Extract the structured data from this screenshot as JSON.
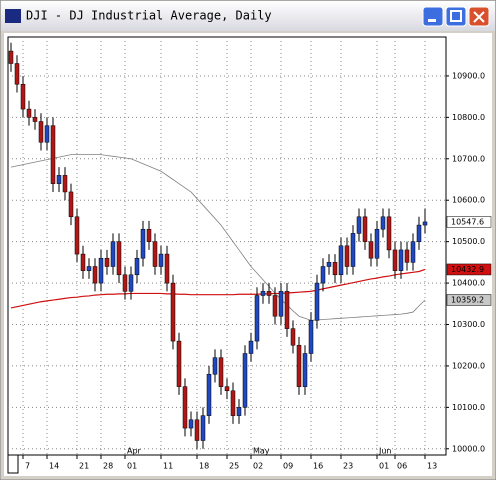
{
  "window": {
    "title": "DJI - DJ Industrial Average, Daily"
  },
  "chart_data": {
    "type": "candlestick",
    "categories": [
      null,
      null,
      "7",
      null,
      null,
      null,
      "14",
      null,
      null,
      null,
      null,
      "21",
      null,
      null,
      null,
      "28",
      null,
      null,
      null,
      "01",
      null,
      null,
      null,
      null,
      null,
      "11",
      null,
      null,
      null,
      null,
      null,
      "18",
      null,
      null,
      null,
      null,
      "25",
      null,
      null,
      null,
      "02",
      null,
      null,
      null,
      null,
      "09",
      null,
      null,
      null,
      null,
      "16",
      null,
      null,
      null,
      null,
      "23",
      null,
      null,
      null,
      null,
      null,
      "01",
      null,
      null,
      "06",
      null,
      null,
      null,
      null,
      "13"
    ],
    "month_categories": [
      null,
      null,
      null,
      null,
      null,
      null,
      null,
      null,
      null,
      null,
      null,
      null,
      null,
      null,
      null,
      null,
      null,
      null,
      null,
      "Apr",
      null,
      null,
      null,
      null,
      null,
      null,
      null,
      null,
      null,
      null,
      null,
      null,
      null,
      null,
      null,
      null,
      null,
      null,
      null,
      null,
      "May",
      null,
      null,
      null,
      null,
      null,
      null,
      null,
      null,
      null,
      null,
      null,
      null,
      null,
      null,
      null,
      null,
      null,
      null,
      null,
      null,
      "Jun",
      null,
      null,
      null,
      null,
      null,
      null,
      null,
      null
    ],
    "open": [
      10960,
      10930,
      10880,
      10820,
      10800,
      10790,
      10740,
      10780,
      10640,
      10660,
      10620,
      10560,
      10470,
      10430,
      10440,
      10400,
      10460,
      10440,
      10500,
      10420,
      10380,
      10420,
      10460,
      10530,
      10500,
      10440,
      10470,
      10400,
      10260,
      10150,
      10050,
      10070,
      10020,
      10080,
      10180,
      10220,
      10150,
      10140,
      10080,
      10100,
      10230,
      10260,
      10370,
      10380,
      10370,
      10320,
      10380,
      10290,
      10250,
      10150,
      10230,
      10310,
      10400,
      10440,
      10450,
      10420,
      10490,
      10440,
      10520,
      10560,
      10500,
      10460,
      10530,
      10560,
      10480,
      10430,
      10480,
      10450,
      10500,
      10540
    ],
    "high": [
      10980,
      10950,
      10900,
      10840,
      10820,
      10810,
      10800,
      10800,
      10680,
      10680,
      10640,
      10580,
      10490,
      10460,
      10460,
      10480,
      10480,
      10520,
      10520,
      10440,
      10440,
      10480,
      10550,
      10550,
      10520,
      10490,
      10490,
      10420,
      10280,
      10170,
      10090,
      10090,
      10100,
      10200,
      10240,
      10240,
      10170,
      10160,
      10120,
      10250,
      10280,
      10390,
      10400,
      10400,
      10390,
      10400,
      10400,
      10310,
      10270,
      10250,
      10330,
      10420,
      10460,
      10470,
      10470,
      10510,
      10510,
      10540,
      10580,
      10580,
      10520,
      10550,
      10580,
      10580,
      10500,
      10500,
      10500,
      10520,
      10560,
      10580
    ],
    "low": [
      10910,
      10860,
      10800,
      10780,
      10770,
      10720,
      10720,
      10620,
      10620,
      10600,
      10540,
      10450,
      10410,
      10410,
      10380,
      10380,
      10420,
      10420,
      10400,
      10360,
      10360,
      10400,
      10440,
      10480,
      10420,
      10420,
      10380,
      10240,
      10130,
      10030,
      10030,
      10000,
      10000,
      10060,
      10160,
      10130,
      10120,
      10060,
      10060,
      10080,
      10210,
      10240,
      10350,
      10350,
      10300,
      10300,
      10270,
      10230,
      10130,
      10130,
      10210,
      10290,
      10380,
      10420,
      10400,
      10400,
      10420,
      10420,
      10500,
      10480,
      10440,
      10440,
      10510,
      10460,
      10410,
      10410,
      10430,
      10430,
      10480,
      10520
    ],
    "close": [
      10930,
      10880,
      10820,
      10800,
      10790,
      10740,
      10780,
      10640,
      10660,
      10620,
      10560,
      10470,
      10430,
      10440,
      10400,
      10460,
      10440,
      10500,
      10420,
      10380,
      10420,
      10460,
      10530,
      10500,
      10440,
      10470,
      10400,
      10260,
      10150,
      10050,
      10070,
      10020,
      10080,
      10180,
      10220,
      10150,
      10140,
      10080,
      10100,
      10230,
      10260,
      10370,
      10380,
      10370,
      10320,
      10380,
      10290,
      10250,
      10150,
      10230,
      10310,
      10400,
      10440,
      10450,
      10420,
      10490,
      10440,
      10520,
      10560,
      10500,
      10460,
      10530,
      10560,
      10480,
      10430,
      10480,
      10450,
      10500,
      10540,
      10547.6
    ],
    "up_color": "#2048c0",
    "down_color": "#b01818",
    "overlays": [
      {
        "color": "#d01010",
        "values": [
          10340,
          10343,
          10346,
          10349,
          10352,
          10355,
          10357,
          10359,
          10361,
          10363,
          10365,
          10366,
          10368,
          10369,
          10371,
          10372,
          10373,
          10373,
          10374,
          10374,
          10375,
          10375,
          10375,
          10375,
          10375,
          10375,
          10374,
          10374,
          10373,
          10373,
          10372,
          10372,
          10372,
          10372,
          10372,
          10372,
          10372,
          10372,
          10373,
          10373,
          10373,
          10373,
          10374,
          10374,
          10375,
          10375,
          10376,
          10377,
          10378,
          10379,
          10380,
          10383,
          10386,
          10389,
          10392,
          10395,
          10398,
          10401,
          10404,
          10407,
          10410,
          10412,
          10415,
          10417,
          10420,
          10422,
          10424,
          10426,
          10428,
          10432.9
        ]
      },
      {
        "color": "#808080",
        "values": [
          10680,
          10683,
          10686,
          10689,
          10692,
          10695,
          10698,
          10701,
          10704,
          10707,
          10710,
          10710,
          10710,
          10710,
          10710,
          10710,
          10708,
          10706,
          10704,
          10702,
          10700,
          10694,
          10688,
          10682,
          10676,
          10670,
          10660,
          10650,
          10640,
          10630,
          10620,
          10604,
          10588,
          10572,
          10556,
          10540,
          10520,
          10500,
          10480,
          10460,
          10440,
          10424,
          10408,
          10392,
          10376,
          10360,
          10347,
          10333,
          10320,
          10315,
          10310,
          10311,
          10312,
          10313,
          10314,
          10315,
          10316,
          10317,
          10318,
          10319,
          10320,
          10321,
          10322,
          10323,
          10324,
          10325,
          10327,
          10330,
          10345,
          10359.2
        ]
      }
    ],
    "ylim": [
      9985,
      10994
    ],
    "yticks": [
      {
        "value": 10000,
        "label": "10000.0"
      },
      {
        "value": 10100,
        "label": "10100.0"
      },
      {
        "value": 10200,
        "label": "10200.0"
      },
      {
        "value": 10300,
        "label": "10300.0"
      },
      {
        "value": 10400,
        "label": "10400.0"
      },
      {
        "value": 10500,
        "label": "10500.0"
      },
      {
        "value": 10600,
        "label": "10600.0"
      },
      {
        "value": 10700,
        "label": "10700.0"
      },
      {
        "value": 10800,
        "label": "10800.0"
      },
      {
        "value": 10900,
        "label": "10900.0"
      }
    ],
    "grid": true
  }
}
